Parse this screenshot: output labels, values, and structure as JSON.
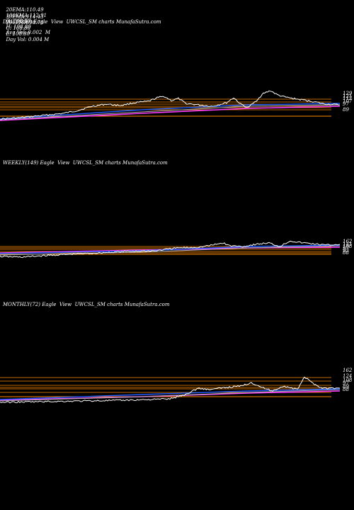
{
  "header": {
    "row1": [
      {
        "label": "20EMA:",
        "value": "110.49"
      },
      {
        "label": "100EMA:",
        "value": "112.91"
      },
      {
        "label": "O:",
        "value": "108.80"
      },
      {
        "label": "H:",
        "value": "108.80"
      },
      {
        "label": "Avg Vol:",
        "value": "0.002  M"
      }
    ],
    "row2": [
      {
        "label": "30EMA:",
        "value": "114.43"
      },
      {
        "label": "200EMA:",
        "value": "98.78"
      },
      {
        "label": "C:",
        "value": "108.80"
      },
      {
        "label": "L:",
        "value": "108.80"
      },
      {
        "label": "Day Vol:",
        "value": "0.004 M"
      }
    ]
  },
  "chart_data": [
    {
      "type": "line",
      "title": "DAILY(250) Eagle  View  UWCSL_SM charts MunafaSutra.com",
      "right_labels": [
        "129",
        "121",
        "112",
        "107",
        "97",
        "89"
      ],
      "colors": {
        "price": "#ffffff",
        "ema_short": "#1e5cff",
        "ema_mid": "#b0b0b0",
        "ema_long": "#ff3cff",
        "levels": "#ff8c00"
      }
    },
    {
      "type": "line",
      "title": "WEEKLY(149) Eagle  View  UWCSL_SM charts MunafaSutra.com",
      "right_labels": [
        "162",
        "141",
        "108",
        "97",
        "92",
        "88"
      ],
      "colors": {
        "price": "#ffffff",
        "ema_short": "#1e5cff",
        "ema_mid": "#b0b0b0",
        "ema_long": "#ff3cff",
        "levels": "#ff8c00"
      }
    },
    {
      "type": "line",
      "title": "MONTHLY(72) Eagle  View  UWCSL_SM charts MunafaSutra.com",
      "right_labels": [
        "162",
        "124",
        "108",
        "97",
        "89",
        "88"
      ],
      "colors": {
        "price": "#ffffff",
        "ema_short": "#1e5cff",
        "ema_mid": "#b0b0b0",
        "ema_long": "#ff3cff",
        "levels": "#ff8c00"
      }
    }
  ]
}
